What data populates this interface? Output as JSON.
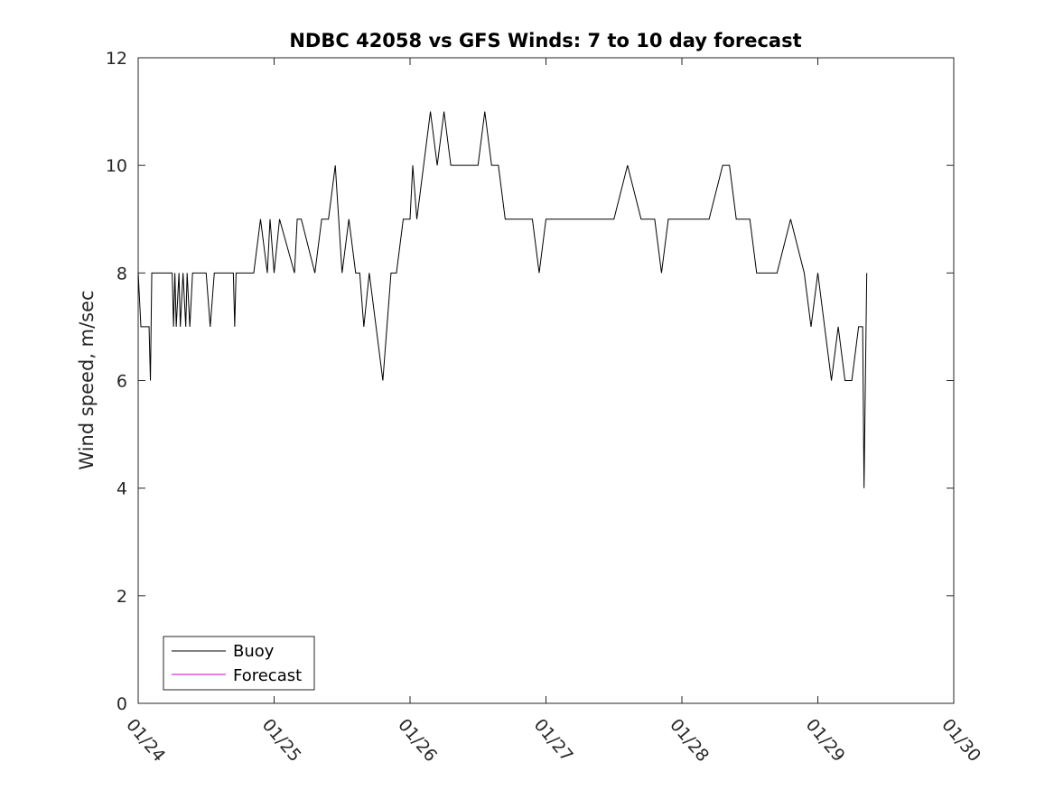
{
  "chart_data": {
    "type": "line",
    "title": "NDBC 42058 vs GFS Winds: 7 to 10 day forecast",
    "xlabel": "",
    "ylabel": "Wind speed, m/sec",
    "xlim": [
      "01/24",
      "01/30"
    ],
    "ylim": [
      0,
      12
    ],
    "x_ticks": [
      "01/24",
      "01/25",
      "01/26",
      "01/27",
      "01/28",
      "01/29",
      "01/30"
    ],
    "y_ticks": [
      0,
      2,
      4,
      6,
      8,
      10,
      12
    ],
    "grid": false,
    "legend_position": "bottom-left",
    "series": [
      {
        "name": "Buoy",
        "color": "#000000",
        "x_unit": "days after 01/24 00:00",
        "x": [
          0,
          0.02,
          0.08,
          0.09,
          0.1,
          0.11,
          0.25,
          0.26,
          0.27,
          0.28,
          0.3,
          0.31,
          0.33,
          0.35,
          0.36,
          0.38,
          0.4,
          0.5,
          0.53,
          0.56,
          0.6,
          0.7,
          0.71,
          0.72,
          0.73,
          0.85,
          0.9,
          0.95,
          0.97,
          1.0,
          1.04,
          1.15,
          1.17,
          1.2,
          1.3,
          1.35,
          1.4,
          1.45,
          1.5,
          1.55,
          1.6,
          1.63,
          1.66,
          1.7,
          1.75,
          1.8,
          1.83,
          1.86,
          1.9,
          1.95,
          2.0,
          2.02,
          2.05,
          2.1,
          2.15,
          2.2,
          2.25,
          2.3,
          2.35,
          2.4,
          2.45,
          2.5,
          2.55,
          2.6,
          2.65,
          2.7,
          2.75,
          2.85,
          2.9,
          2.95,
          3.0,
          3.1,
          3.3,
          3.5,
          3.6,
          3.7,
          3.8,
          3.85,
          3.9,
          4.0,
          4.1,
          4.2,
          4.3,
          4.35,
          4.4,
          4.5,
          4.55,
          4.6,
          4.7,
          4.8,
          4.9,
          4.95,
          5.0,
          5.05,
          5.1,
          5.15,
          5.2,
          5.25,
          5.3,
          5.33,
          5.34,
          5.35,
          5.36
        ],
        "y": [
          8,
          7,
          7,
          6,
          8,
          8,
          8,
          7,
          8,
          7,
          8,
          7,
          8,
          7,
          8,
          7,
          8,
          8,
          7,
          8,
          8,
          8,
          7,
          8,
          8,
          8,
          9,
          8,
          9,
          8,
          9,
          8,
          9,
          9,
          8,
          9,
          9,
          10,
          8,
          9,
          8,
          8,
          7,
          8,
          7,
          6,
          7,
          8,
          8,
          9,
          9,
          10,
          9,
          10,
          11,
          10,
          11,
          10,
          10,
          10,
          10,
          10,
          11,
          10,
          10,
          9,
          9,
          9,
          9,
          8,
          9,
          9,
          9,
          9,
          10,
          9,
          9,
          8,
          9,
          9,
          9,
          9,
          10,
          10,
          9,
          9,
          8,
          8,
          8,
          9,
          8,
          7,
          8,
          7,
          6,
          7,
          6,
          6,
          7,
          7,
          4,
          6,
          8
        ]
      },
      {
        "name": "Forecast",
        "color": "#cc00cc",
        "x": [],
        "y": []
      }
    ]
  }
}
